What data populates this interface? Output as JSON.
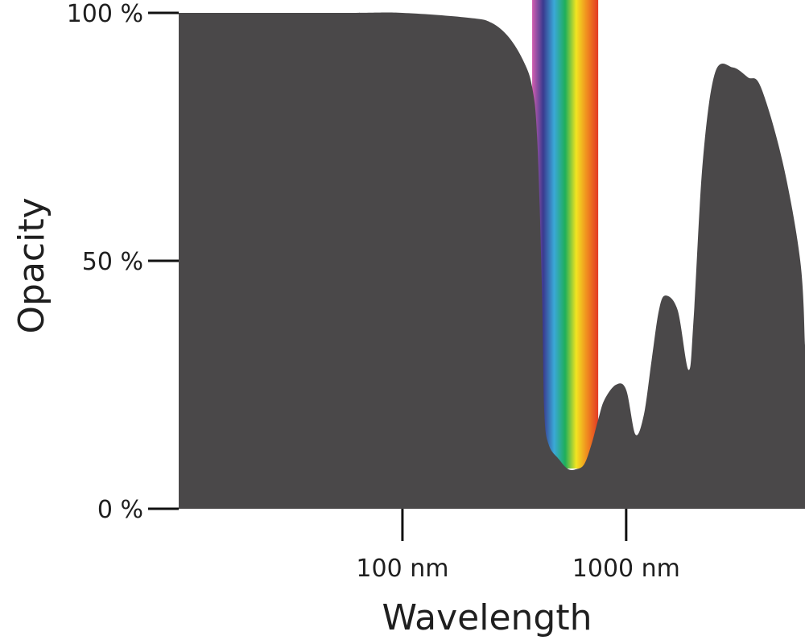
{
  "chart_data": {
    "type": "area",
    "title": "",
    "xlabel": "Wavelength",
    "ylabel": "Opacity",
    "x_scale": "log",
    "x_unit": "nm",
    "xlim": [
      10,
      6300
    ],
    "ylim": [
      0,
      100
    ],
    "x_ticks": [
      {
        "value": 100,
        "label": "100 nm"
      },
      {
        "value": 1000,
        "label": "1000 nm"
      }
    ],
    "y_ticks": [
      {
        "value": 0,
        "label": "0 %"
      },
      {
        "value": 50,
        "label": "50 %"
      },
      {
        "value": 100,
        "label": "100 %"
      }
    ],
    "grid": false,
    "fill_color": "#4a4849",
    "visible_band_nm": [
      380,
      750
    ],
    "visible_band_colors": [
      "#d35fb0",
      "#3a3a8f",
      "#3aa8d8",
      "#1fae5a",
      "#f2e421",
      "#f08a1f",
      "#e33a25"
    ],
    "series": [
      {
        "x": [
          10,
          20,
          60,
          100,
          200,
          250,
          300,
          350,
          380,
          400,
          420,
          430,
          450,
          500,
          550,
          600,
          650,
          700,
          750,
          800,
          900,
          1000,
          1100,
          1200,
          1300,
          1400,
          1500,
          1700,
          1900,
          2000,
          2200,
          2500,
          3000,
          3500,
          4000,
          5000,
          6000,
          6300
        ],
        "y": [
          100,
          100,
          100,
          100,
          99,
          98,
          95,
          90,
          85,
          75,
          45,
          20,
          13,
          10,
          8,
          8,
          9,
          13,
          18,
          22,
          25,
          24,
          15,
          19,
          30,
          40,
          43,
          40,
          28,
          38,
          70,
          88,
          89,
          87,
          85,
          70,
          50,
          33
        ]
      }
    ]
  }
}
